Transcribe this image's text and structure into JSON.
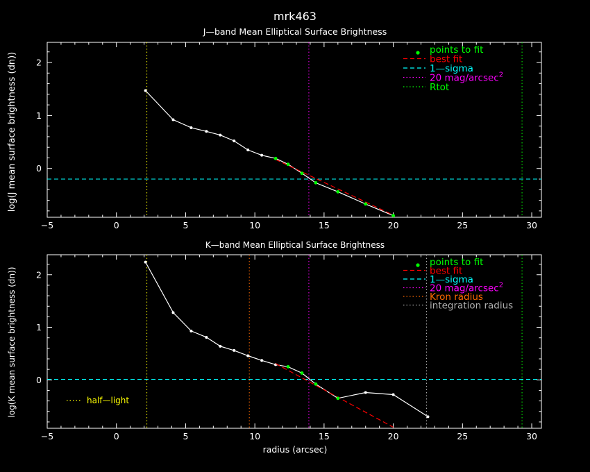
{
  "figure": {
    "title": "mrk463",
    "x_label": "radius (arcsec)"
  },
  "chart_data": [
    {
      "type": "line",
      "title": "J—band Mean Elliptical Surface Brightness",
      "ylabel": "log(J mean surface brightness (dn))",
      "xlim": [
        -5,
        30.7
      ],
      "ylim": [
        -0.92,
        2.38
      ],
      "x_ticks": [
        -5,
        0,
        5,
        10,
        15,
        20,
        25,
        30
      ],
      "y_ticks": [
        0,
        1,
        2
      ],
      "profile": {
        "x": [
          2.1,
          4.1,
          5.4,
          6.5,
          7.5,
          8.5,
          9.5,
          10.5,
          11.5,
          12.4,
          13.4,
          14.4,
          16.0,
          18.0,
          20.0
        ],
        "y": [
          1.47,
          0.92,
          0.77,
          0.7,
          0.63,
          0.52,
          0.35,
          0.25,
          0.19,
          0.08,
          -0.09,
          -0.27,
          -0.44,
          -0.67,
          -0.89
        ]
      },
      "points_to_fit": {
        "x": [
          11.5,
          12.4,
          13.4,
          14.4,
          16.0,
          18.0,
          20.0
        ],
        "y": [
          0.19,
          0.08,
          -0.09,
          -0.27,
          -0.44,
          -0.67,
          -0.89
        ]
      },
      "best_fit": {
        "x": [
          11.5,
          20.0
        ],
        "y": [
          0.17,
          -0.88
        ]
      },
      "one_sigma": -0.2,
      "vlines": [
        {
          "x": 2.2,
          "color": "#ffff00"
        },
        {
          "x": 13.9,
          "color": "#ff00ff"
        },
        {
          "x": 29.3,
          "color": "#00ff00"
        }
      ],
      "legend": [
        {
          "label": "points to fit",
          "color": "#00ff00",
          "style": "point"
        },
        {
          "label": "best fit",
          "color": "#ff0000",
          "style": "dash"
        },
        {
          "label": "1—sigma",
          "color": "#00ffff",
          "style": "dash"
        },
        {
          "label": "20 mag/arcsec",
          "sup": "2",
          "color": "#ff00ff",
          "style": "dot"
        },
        {
          "label": "Rtot",
          "color": "#00ff00",
          "style": "dot"
        }
      ]
    },
    {
      "type": "line",
      "title": "K—band Mean Elliptical Surface Brightness",
      "ylabel": "log(K mean surface brightness (dn))",
      "xlim": [
        -5,
        30.7
      ],
      "ylim": [
        -0.92,
        2.38
      ],
      "x_ticks": [
        -5,
        0,
        5,
        10,
        15,
        20,
        25,
        30
      ],
      "y_ticks": [
        0,
        1,
        2
      ],
      "profile": {
        "x": [
          2.1,
          4.1,
          5.4,
          6.5,
          7.5,
          8.5,
          9.5,
          10.5,
          11.5,
          12.4,
          13.4,
          14.4,
          16.0,
          18.0,
          20.0,
          22.5
        ],
        "y": [
          2.24,
          1.28,
          0.93,
          0.81,
          0.64,
          0.56,
          0.46,
          0.37,
          0.29,
          0.25,
          0.13,
          -0.08,
          -0.35,
          -0.24,
          -0.28,
          -0.7
        ]
      },
      "points_to_fit": {
        "x": [
          12.4,
          13.4,
          14.4,
          16.0
        ],
        "y": [
          0.25,
          0.13,
          -0.08,
          -0.35
        ]
      },
      "best_fit": {
        "x": [
          11.5,
          20.0
        ],
        "y": [
          0.31,
          -0.9
        ]
      },
      "one_sigma": 0.01,
      "vlines": [
        {
          "x": 2.2,
          "color": "#ffff00"
        },
        {
          "x": 9.6,
          "color": "#ff6a00"
        },
        {
          "x": 13.9,
          "color": "#ff00ff"
        },
        {
          "x": 22.4,
          "color": "#b0b0b0"
        },
        {
          "x": 29.3,
          "color": "#00ff00"
        }
      ],
      "legend": [
        {
          "label": "points to fit",
          "color": "#00ff00",
          "style": "point"
        },
        {
          "label": "best fit",
          "color": "#ff0000",
          "style": "dash"
        },
        {
          "label": "1—sigma",
          "color": "#00ffff",
          "style": "dash"
        },
        {
          "label": "20 mag/arcsec",
          "sup": "2",
          "color": "#ff00ff",
          "style": "dot"
        },
        {
          "label": "Kron radius",
          "color": "#ff6a00",
          "style": "dot"
        },
        {
          "label": "integration radius",
          "color": "#b0b0b0",
          "style": "dot"
        }
      ],
      "annotation": {
        "label": "half—light",
        "color": "#ffff00"
      }
    }
  ]
}
